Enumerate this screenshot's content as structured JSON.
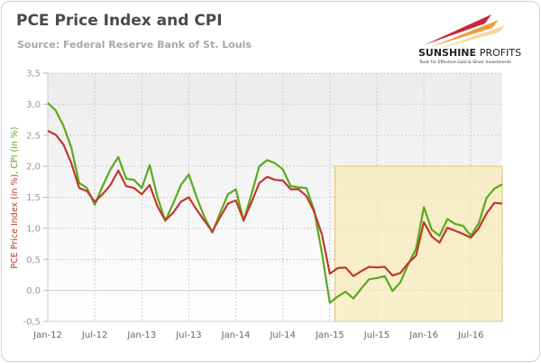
{
  "header": {
    "title": "PCE Price Index and CPI",
    "source": "Source: Federal Reserve Bank of St. Louis"
  },
  "logo": {
    "name_bold": "SUNSHINE",
    "name_light": "PROFITS",
    "tagline": "Tools for Effective Gold & Silver Investments"
  },
  "chart_data": {
    "type": "line",
    "title": "PCE Price Index and CPI",
    "ylabel_parts": [
      "PCE Price Index (in %)",
      ", ",
      "CPI (in %)"
    ],
    "ylim": [
      -0.5,
      3.5
    ],
    "yticks": [
      "-0,5",
      "0,0",
      "0,5",
      "1,0",
      "1,5",
      "2,0",
      "2,5",
      "3,0",
      "3,5"
    ],
    "ytick_values": [
      -0.5,
      0,
      0.5,
      1,
      1.5,
      2,
      2.5,
      3,
      3.5
    ],
    "xticks": [
      "Jan-12",
      "Jul-12",
      "Jan-13",
      "Jul-13",
      "Jan-14",
      "Jul-14",
      "Jan-15",
      "Jul-15",
      "Jan-16",
      "Jul-16"
    ],
    "xtick_months": [
      0,
      6,
      12,
      18,
      24,
      30,
      36,
      42,
      48,
      54
    ],
    "x_start": "Jan-12",
    "x_end": "Nov-16",
    "grid": true,
    "highlight": {
      "x_from": "Feb-15",
      "x_to": "Nov-16",
      "y_from": -0.5,
      "y_to": 2.0,
      "color": "#f7e9b8"
    },
    "series": [
      {
        "name": "PCE Price Index (in %)",
        "color": "#c0392b",
        "values": [
          2.57,
          2.51,
          2.35,
          2.05,
          1.65,
          1.6,
          1.43,
          1.55,
          1.7,
          1.93,
          1.68,
          1.65,
          1.55,
          1.7,
          1.35,
          1.13,
          1.25,
          1.43,
          1.5,
          1.3,
          1.12,
          0.95,
          1.18,
          1.4,
          1.45,
          1.13,
          1.42,
          1.73,
          1.83,
          1.78,
          1.77,
          1.63,
          1.63,
          1.52,
          1.27,
          0.9,
          0.27,
          0.36,
          0.37,
          0.23,
          0.31,
          0.38,
          0.37,
          0.38,
          0.24,
          0.28,
          0.44,
          0.56,
          1.1,
          0.87,
          0.77,
          1.01,
          0.96,
          0.91,
          0.85,
          1.0,
          1.24,
          1.41,
          1.4
        ]
      },
      {
        "name": "CPI (in %)",
        "color": "#5aaa1e",
        "values": [
          3.02,
          2.9,
          2.65,
          2.3,
          1.73,
          1.65,
          1.38,
          1.68,
          1.95,
          2.15,
          1.8,
          1.78,
          1.65,
          2.02,
          1.5,
          1.12,
          1.4,
          1.7,
          1.87,
          1.5,
          1.18,
          0.93,
          1.25,
          1.55,
          1.63,
          1.12,
          1.55,
          2.0,
          2.1,
          2.05,
          1.95,
          1.68,
          1.66,
          1.65,
          1.29,
          0.6,
          -0.2,
          -0.1,
          -0.02,
          -0.13,
          0.03,
          0.18,
          0.2,
          0.23,
          -0.01,
          0.13,
          0.42,
          0.67,
          1.34,
          0.98,
          0.88,
          1.15,
          1.07,
          1.04,
          0.88,
          1.08,
          1.49,
          1.64,
          1.71
        ]
      }
    ]
  }
}
